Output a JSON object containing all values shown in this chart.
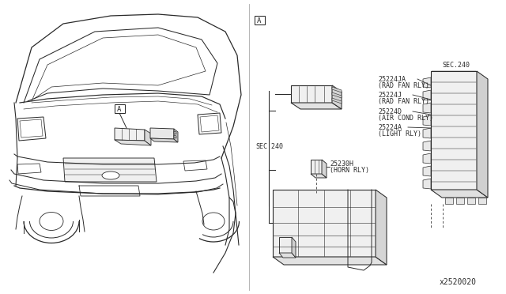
{
  "bg_color": "#ffffff",
  "line_color": "#2a2a2a",
  "diagram_id": "x2520020",
  "labels": {
    "sec240_left": "SEC.240",
    "sec240_right": "SEC.240",
    "box_A": "A",
    "part1_id": "25224JA",
    "part1_name": "(RAD FAN RLY)",
    "part2_id": "25224J",
    "part2_name": "(RAD FAN RLY)",
    "part3_id": "25224D",
    "part3_name": "(AIR COND RLY)",
    "part4_id": "25224A",
    "part4_name": "(LIGHT RLY)",
    "part5_id": "25230H",
    "part5_name": "(HORN RLY)"
  },
  "figsize": [
    6.4,
    3.72
  ],
  "dpi": 100
}
